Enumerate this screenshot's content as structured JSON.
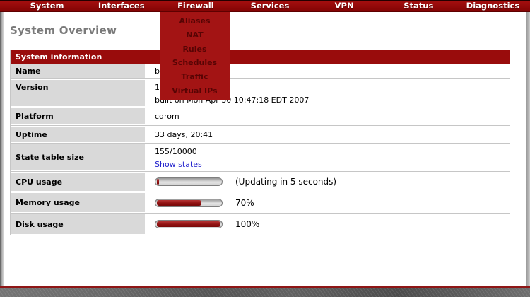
{
  "nav": {
    "items": [
      {
        "label": "System"
      },
      {
        "label": "Interfaces"
      },
      {
        "label": "Firewall"
      },
      {
        "label": "Services"
      },
      {
        "label": "VPN"
      },
      {
        "label": "Status"
      },
      {
        "label": "Diagnostics"
      }
    ]
  },
  "dropdown": {
    "parent": "Firewall",
    "items": [
      "Aliases",
      "NAT",
      "Rules",
      "Schedules",
      "Traffic",
      "Virtual IPs"
    ]
  },
  "page": {
    "title": "System Overview"
  },
  "system_info": {
    "header": "System information",
    "rows": [
      {
        "label": "Name",
        "value": "b"
      },
      {
        "label": "Version",
        "value": "1",
        "value_line2": "built on Mon Apr 30 10:47:18 EDT 2007"
      },
      {
        "label": "Platform",
        "value": "cdrom"
      },
      {
        "label": "Uptime",
        "value": "33 days, 20:41"
      },
      {
        "label": "State table size",
        "value": "155/10000",
        "link_label": "Show states"
      },
      {
        "label": "CPU usage",
        "bar_percent": 3,
        "note": "(Updating in 5 seconds)"
      },
      {
        "label": "Memory usage",
        "bar_percent": 70,
        "note": "70%"
      },
      {
        "label": "Disk usage",
        "bar_percent": 100,
        "note": "100%"
      }
    ]
  },
  "colors": {
    "nav_red": "#9b0b0b",
    "menu_red": "#a31414",
    "menu_text": "#570404",
    "table_header_red": "#990c0c",
    "label_cell_gray": "#d9d9d9",
    "bar_fill_red": "#8c0f0f",
    "link_blue": "#2222cc",
    "title_gray": "#7a7a7a"
  }
}
